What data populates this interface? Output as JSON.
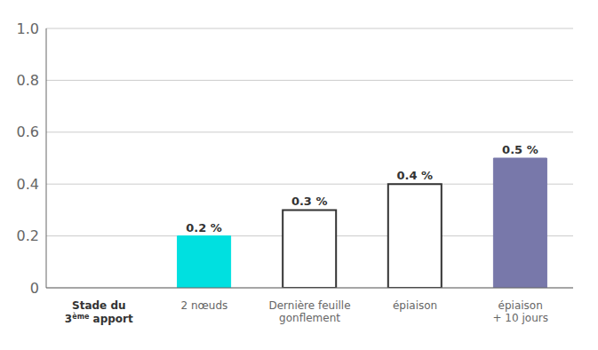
{
  "chart_data": {
    "type": "bar",
    "categories": [
      null,
      "2 nœuds",
      "Dernière feuille\ngonflement",
      "épiaison",
      "épiaison\n+ 10 jours"
    ],
    "values": [
      null,
      0.2,
      0.3,
      0.4,
      0.5
    ],
    "value_labels": [
      null,
      "0.2 %",
      "0.3 %",
      "0.4 %",
      "0.5 %"
    ],
    "colors": [
      null,
      "#00e0e0",
      "#ffffff",
      "#ffffff",
      "#7878aa"
    ],
    "annotations": [
      "Stade du",
      "3ème apport"
    ],
    "ylim": [
      0,
      1.0
    ],
    "yticks": [
      0,
      0.2,
      0.4,
      0.6,
      0.8,
      {
        "value": 1.0,
        "label": "1.0"
      }
    ],
    "grid": true,
    "data_labels": true
  }
}
